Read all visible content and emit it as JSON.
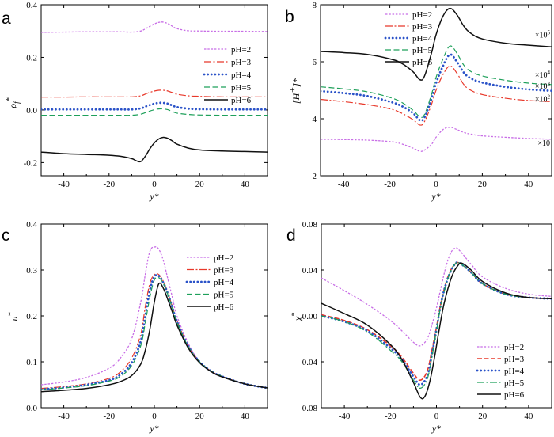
{
  "colors": {
    "pH=2": "#c86ee6",
    "pH=3": "#e8382a",
    "pH=4": "#2a52c8",
    "pH=5": "#1ea05a",
    "pH=6": "#111111",
    "frame": "#000000"
  },
  "chart_data": [
    {
      "id": "a",
      "type": "line",
      "panel_letter": "a",
      "xlabel": "y*",
      "ylabel_main": "ρ",
      "ylabel_sub": "f",
      "ylabel_sup": "*",
      "xlim": [
        -50,
        50
      ],
      "ylim": [
        -0.25,
        0.4
      ],
      "xticks": [
        -40,
        -20,
        0,
        20,
        40
      ],
      "xtick_labels": [
        "-40",
        "-20",
        "0",
        "20",
        "40"
      ],
      "yticks": [
        -0.2,
        0.0,
        0.2,
        0.4
      ],
      "ytick_labels": [
        "-0.2",
        "0.0",
        "0.2",
        "0.4"
      ],
      "legend": [
        "pH=2",
        "pH=3",
        "pH=4",
        "pH=5",
        "pH=6"
      ],
      "legend_position": "right-middle",
      "annotations": [],
      "series": [
        {
          "name": "pH=2",
          "x": [
            -50,
            -40,
            -30,
            -20,
            -15,
            -10,
            -6,
            -3,
            0,
            2,
            4,
            6,
            8,
            10,
            15,
            20,
            30,
            40,
            50
          ],
          "values": [
            0.295,
            0.296,
            0.297,
            0.297,
            0.297,
            0.296,
            0.3,
            0.313,
            0.327,
            0.333,
            0.334,
            0.328,
            0.318,
            0.309,
            0.301,
            0.3,
            0.299,
            0.299,
            0.298
          ]
        },
        {
          "name": "pH=3",
          "x": [
            -50,
            -40,
            -30,
            -20,
            -15,
            -10,
            -6,
            -3,
            0,
            2,
            4,
            6,
            8,
            10,
            15,
            20,
            30,
            40,
            50
          ],
          "values": [
            0.049,
            0.049,
            0.05,
            0.05,
            0.05,
            0.05,
            0.054,
            0.064,
            0.072,
            0.075,
            0.075,
            0.072,
            0.066,
            0.06,
            0.054,
            0.052,
            0.05,
            0.05,
            0.05
          ]
        },
        {
          "name": "pH=4",
          "x": [
            -50,
            -40,
            -30,
            -20,
            -15,
            -10,
            -6,
            -3,
            0,
            2,
            4,
            6,
            8,
            10,
            15,
            20,
            30,
            40,
            50
          ],
          "values": [
            0.002,
            0.002,
            0.002,
            0.002,
            0.002,
            0.002,
            0.006,
            0.016,
            0.024,
            0.027,
            0.027,
            0.024,
            0.017,
            0.011,
            0.005,
            0.003,
            0.002,
            0.002,
            0.002
          ]
        },
        {
          "name": "pH=5",
          "x": [
            -50,
            -40,
            -30,
            -20,
            -15,
            -10,
            -6,
            -3,
            0,
            2,
            4,
            6,
            8,
            10,
            15,
            20,
            30,
            40,
            50
          ],
          "values": [
            -0.02,
            -0.02,
            -0.02,
            -0.02,
            -0.02,
            -0.02,
            -0.016,
            -0.007,
            0.001,
            0.004,
            0.004,
            0.001,
            -0.006,
            -0.012,
            -0.017,
            -0.019,
            -0.02,
            -0.02,
            -0.02
          ]
        },
        {
          "name": "pH=6",
          "x": [
            -50,
            -40,
            -30,
            -20,
            -15,
            -10,
            -8,
            -6,
            -4,
            -2,
            0,
            2,
            4,
            6,
            8,
            10,
            15,
            20,
            30,
            40,
            50
          ],
          "values": [
            -0.16,
            -0.166,
            -0.169,
            -0.172,
            -0.176,
            -0.185,
            -0.193,
            -0.196,
            -0.176,
            -0.148,
            -0.125,
            -0.11,
            -0.104,
            -0.108,
            -0.118,
            -0.13,
            -0.145,
            -0.152,
            -0.156,
            -0.158,
            -0.16
          ]
        }
      ]
    },
    {
      "id": "b",
      "type": "line",
      "panel_letter": "b",
      "xlabel": "y*",
      "ylabel_main": "[H",
      "ylabel_sup_inner": "+",
      "ylabel_tail": "]*",
      "xlim": [
        -50,
        50
      ],
      "ylim": [
        2,
        8
      ],
      "xticks": [
        -40,
        -20,
        0,
        20,
        40
      ],
      "xtick_labels": [
        "-40",
        "-20",
        "0",
        "20",
        "40"
      ],
      "yticks": [
        2,
        4,
        6,
        8
      ],
      "ytick_labels": [
        "2",
        "4",
        "6",
        "8"
      ],
      "legend": [
        "pH=2",
        "pH=3",
        "pH=4",
        "pH=5",
        "pH=6"
      ],
      "legend_position": "top-right",
      "annotations": [
        {
          "base": "×10",
          "exp": "5",
          "y": 6.85
        },
        {
          "base": "×10",
          "exp": "4",
          "y": 5.45
        },
        {
          "base": "×10",
          "exp": "3",
          "y": 5.05
        },
        {
          "base": "×10",
          "exp": "2",
          "y": 4.6
        },
        {
          "base": "×10",
          "exp": "",
          "y": 3.05
        }
      ],
      "series": [
        {
          "name": "pH=2",
          "x": [
            -50,
            -40,
            -30,
            -20,
            -15,
            -10,
            -7,
            -5,
            -2,
            0,
            3,
            6,
            9,
            12,
            15,
            20,
            30,
            40,
            50
          ],
          "values": [
            3.28,
            3.27,
            3.25,
            3.2,
            3.12,
            2.97,
            2.86,
            2.9,
            3.1,
            3.35,
            3.62,
            3.7,
            3.62,
            3.52,
            3.46,
            3.4,
            3.35,
            3.31,
            3.28
          ]
        },
        {
          "name": "pH=3",
          "x": [
            -50,
            -40,
            -30,
            -20,
            -15,
            -10,
            -7,
            -5,
            -2,
            0,
            3,
            6,
            9,
            12,
            15,
            20,
            30,
            40,
            50
          ],
          "values": [
            4.68,
            4.6,
            4.5,
            4.35,
            4.2,
            3.97,
            3.78,
            3.9,
            4.5,
            5.0,
            5.55,
            5.85,
            5.6,
            5.2,
            5.0,
            4.85,
            4.72,
            4.64,
            4.6
          ]
        },
        {
          "name": "pH=4",
          "x": [
            -50,
            -40,
            -30,
            -20,
            -15,
            -10,
            -7,
            -5,
            -2,
            0,
            3,
            6,
            9,
            12,
            15,
            20,
            30,
            40,
            50
          ],
          "values": [
            4.97,
            4.9,
            4.8,
            4.6,
            4.45,
            4.2,
            3.95,
            4.05,
            4.7,
            5.25,
            5.85,
            6.25,
            6.0,
            5.62,
            5.42,
            5.27,
            5.12,
            5.03,
            4.98
          ]
        },
        {
          "name": "pH=5",
          "x": [
            -50,
            -40,
            -30,
            -20,
            -15,
            -10,
            -7,
            -5,
            -2,
            0,
            3,
            6,
            9,
            12,
            15,
            20,
            30,
            40,
            50
          ],
          "values": [
            5.12,
            5.05,
            4.95,
            4.75,
            4.58,
            4.3,
            4.07,
            4.15,
            4.85,
            5.45,
            6.1,
            6.55,
            6.3,
            5.88,
            5.66,
            5.5,
            5.35,
            5.25,
            5.2
          ]
        },
        {
          "name": "pH=6",
          "x": [
            -50,
            -40,
            -30,
            -20,
            -15,
            -10,
            -7,
            -5,
            -2,
            0,
            3,
            6,
            9,
            12,
            15,
            20,
            30,
            40,
            50
          ],
          "values": [
            6.36,
            6.32,
            6.26,
            6.1,
            5.95,
            5.65,
            5.37,
            5.5,
            6.3,
            6.95,
            7.6,
            7.87,
            7.65,
            7.25,
            7.0,
            6.8,
            6.65,
            6.58,
            6.52
          ]
        }
      ]
    },
    {
      "id": "c",
      "type": "line",
      "panel_letter": "c",
      "xlabel": "y*",
      "ylabel_main": "u",
      "ylabel_sup": "*",
      "xlim": [
        -50,
        50
      ],
      "ylim": [
        0,
        0.4
      ],
      "xticks": [
        -40,
        -20,
        0,
        20,
        40
      ],
      "xtick_labels": [
        "-40",
        "-20",
        "0",
        "20",
        "40"
      ],
      "yticks": [
        0.0,
        0.1,
        0.2,
        0.3,
        0.4
      ],
      "ytick_labels": [
        "0.0",
        "0.1",
        "0.2",
        "0.3",
        "0.4"
      ],
      "legend": [
        "pH=2",
        "pH=3",
        "pH=4",
        "pH=5",
        "pH=6"
      ],
      "legend_position": "top-right",
      "annotations": [],
      "series": [
        {
          "name": "pH=2",
          "x": [
            -50,
            -40,
            -30,
            -20,
            -15,
            -10,
            -6,
            -4,
            -2,
            0,
            2,
            4,
            6,
            8,
            10,
            15,
            20,
            25,
            30,
            40,
            50
          ],
          "values": [
            0.05,
            0.056,
            0.066,
            0.086,
            0.108,
            0.15,
            0.23,
            0.29,
            0.34,
            0.35,
            0.345,
            0.32,
            0.28,
            0.24,
            0.2,
            0.14,
            0.1,
            0.08,
            0.068,
            0.052,
            0.043
          ]
        },
        {
          "name": "pH=3",
          "x": [
            -50,
            -40,
            -30,
            -20,
            -15,
            -10,
            -6,
            -4,
            -2,
            0,
            2,
            4,
            6,
            8,
            10,
            15,
            20,
            25,
            30,
            40,
            50
          ],
          "values": [
            0.042,
            0.046,
            0.052,
            0.064,
            0.078,
            0.108,
            0.16,
            0.22,
            0.27,
            0.29,
            0.29,
            0.275,
            0.25,
            0.22,
            0.19,
            0.135,
            0.1,
            0.08,
            0.068,
            0.052,
            0.043
          ]
        },
        {
          "name": "pH=4",
          "x": [
            -50,
            -40,
            -30,
            -20,
            -15,
            -10,
            -6,
            -4,
            -2,
            0,
            2,
            4,
            6,
            8,
            10,
            15,
            20,
            25,
            30,
            40,
            50
          ],
          "values": [
            0.04,
            0.044,
            0.05,
            0.06,
            0.072,
            0.098,
            0.145,
            0.2,
            0.255,
            0.285,
            0.287,
            0.272,
            0.248,
            0.218,
            0.188,
            0.134,
            0.1,
            0.08,
            0.068,
            0.052,
            0.043
          ]
        },
        {
          "name": "pH=5",
          "x": [
            -50,
            -40,
            -30,
            -20,
            -15,
            -10,
            -6,
            -4,
            -2,
            0,
            2,
            4,
            6,
            8,
            10,
            15,
            20,
            25,
            30,
            40,
            50
          ],
          "values": [
            0.039,
            0.043,
            0.048,
            0.058,
            0.068,
            0.092,
            0.135,
            0.185,
            0.24,
            0.278,
            0.283,
            0.27,
            0.246,
            0.216,
            0.186,
            0.133,
            0.1,
            0.08,
            0.068,
            0.052,
            0.043
          ]
        },
        {
          "name": "pH=6",
          "x": [
            -50,
            -40,
            -30,
            -20,
            -15,
            -10,
            -6,
            -4,
            -2,
            0,
            2,
            4,
            6,
            8,
            10,
            15,
            20,
            25,
            30,
            40,
            50
          ],
          "values": [
            0.035,
            0.038,
            0.042,
            0.05,
            0.057,
            0.07,
            0.095,
            0.125,
            0.17,
            0.23,
            0.27,
            0.26,
            0.235,
            0.208,
            0.18,
            0.13,
            0.098,
            0.079,
            0.067,
            0.052,
            0.043
          ]
        }
      ]
    },
    {
      "id": "d",
      "type": "line",
      "panel_letter": "d",
      "xlabel": "y*",
      "ylabel_main": "χ",
      "ylabel_sup": "*",
      "xlim": [
        -50,
        50
      ],
      "ylim": [
        -0.08,
        0.08
      ],
      "xticks": [
        -40,
        -20,
        0,
        20,
        40
      ],
      "xtick_labels": [
        "-40",
        "-20",
        "0",
        "20",
        "40"
      ],
      "yticks": [
        -0.08,
        -0.04,
        0.0,
        0.04,
        0.08
      ],
      "ytick_labels": [
        "-0.08",
        "-0.04",
        "0.00",
        "0.04",
        "0.08"
      ],
      "legend": [
        "pH=2",
        "pH=3",
        "pH=4",
        "pH=5",
        "pH=6"
      ],
      "legend_position": "bottom-right",
      "annotations": [],
      "series": [
        {
          "name": "pH=2",
          "x": [
            -50,
            -40,
            -30,
            -20,
            -15,
            -10,
            -7,
            -4,
            -2,
            0,
            2,
            4,
            6,
            8,
            10,
            15,
            20,
            30,
            40,
            50
          ],
          "values": [
            0.033,
            0.022,
            0.01,
            -0.004,
            -0.013,
            -0.023,
            -0.026,
            -0.02,
            -0.008,
            0.007,
            0.025,
            0.042,
            0.054,
            0.059,
            0.057,
            0.045,
            0.034,
            0.024,
            0.019,
            0.017
          ]
        },
        {
          "name": "pH=3",
          "x": [
            -50,
            -40,
            -30,
            -20,
            -15,
            -10,
            -7,
            -4,
            -2,
            0,
            2,
            4,
            6,
            8,
            10,
            15,
            20,
            30,
            40,
            50
          ],
          "values": [
            0.001,
            -0.004,
            -0.012,
            -0.026,
            -0.036,
            -0.05,
            -0.056,
            -0.048,
            -0.03,
            -0.01,
            0.012,
            0.028,
            0.039,
            0.045,
            0.046,
            0.038,
            0.028,
            0.019,
            0.016,
            0.015
          ]
        },
        {
          "name": "pH=4",
          "x": [
            -50,
            -40,
            -30,
            -20,
            -15,
            -10,
            -7,
            -4,
            -2,
            0,
            2,
            4,
            6,
            8,
            10,
            15,
            20,
            30,
            40,
            50
          ],
          "values": [
            0.0,
            -0.005,
            -0.013,
            -0.028,
            -0.038,
            -0.053,
            -0.06,
            -0.052,
            -0.034,
            -0.012,
            0.011,
            0.027,
            0.038,
            0.045,
            0.046,
            0.038,
            0.028,
            0.019,
            0.016,
            0.015
          ]
        },
        {
          "name": "pH=5",
          "x": [
            -50,
            -40,
            -30,
            -20,
            -15,
            -10,
            -7,
            -4,
            -2,
            0,
            2,
            4,
            6,
            8,
            10,
            15,
            20,
            30,
            40,
            50
          ],
          "values": [
            0.0,
            -0.005,
            -0.014,
            -0.03,
            -0.04,
            -0.056,
            -0.063,
            -0.055,
            -0.036,
            -0.013,
            0.01,
            0.026,
            0.038,
            0.045,
            0.046,
            0.038,
            0.028,
            0.019,
            0.016,
            0.015
          ]
        },
        {
          "name": "pH=6",
          "x": [
            -50,
            -40,
            -30,
            -20,
            -15,
            -10,
            -7,
            -5,
            -3,
            -1,
            1,
            3,
            5,
            7,
            9,
            11,
            15,
            20,
            30,
            40,
            50
          ],
          "values": [
            0.011,
            0.002,
            -0.008,
            -0.025,
            -0.038,
            -0.058,
            -0.071,
            -0.07,
            -0.058,
            -0.038,
            -0.014,
            0.008,
            0.024,
            0.036,
            0.043,
            0.046,
            0.04,
            0.03,
            0.02,
            0.016,
            0.015
          ]
        }
      ]
    }
  ]
}
